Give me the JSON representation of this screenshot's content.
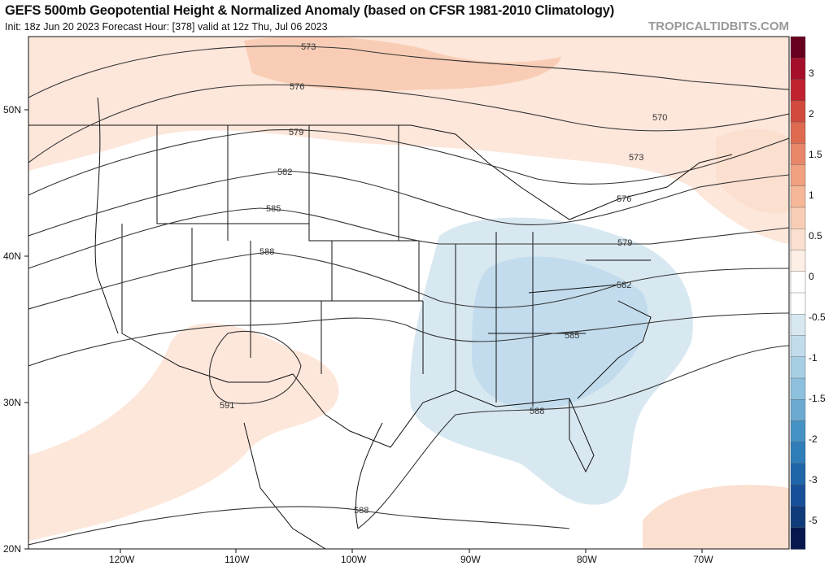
{
  "header": {
    "title": "GEFS 500mb Geopotential Height & Normalized Anomaly (based on CFSR 1981-2010 Climatology)",
    "subtitle": "Init: 18z Jun 20 2023   Forecast Hour: [378]   valid at 12z Thu, Jul 06 2023",
    "brand": "TROPICALTIDBITS.COM"
  },
  "axes": {
    "lat_labels": [
      "50N",
      "40N",
      "30N",
      "20N"
    ],
    "lon_labels": [
      "120W",
      "110W",
      "100W",
      "90W",
      "80W",
      "70W"
    ]
  },
  "contour_labels": [
    "573",
    "576",
    "579",
    "582",
    "585",
    "588",
    "591",
    "570",
    "573",
    "576",
    "579",
    "582",
    "585",
    "588",
    "588"
  ],
  "colorbar": {
    "labels": [
      "3",
      "2",
      "1.5",
      "1",
      "0.5",
      "0",
      "-0.5",
      "-1",
      "-1.5",
      "-2",
      "-3",
      "-5"
    ],
    "colors": [
      "#67001f",
      "#a50f2a",
      "#c0232f",
      "#d04a3d",
      "#de6a50",
      "#e8866a",
      "#f0a07e",
      "#f5b798",
      "#f9cdb5",
      "#fbdfcf",
      "#fdeee6",
      "#ffffff",
      "#ffffff",
      "#d8e8f1",
      "#c2dced",
      "#a7cfe4",
      "#8cc0dd",
      "#6ba9d0",
      "#4593c4",
      "#2f7db9",
      "#1f65a9",
      "#17509a",
      "#0f3b7a",
      "#08174d"
    ]
  }
}
